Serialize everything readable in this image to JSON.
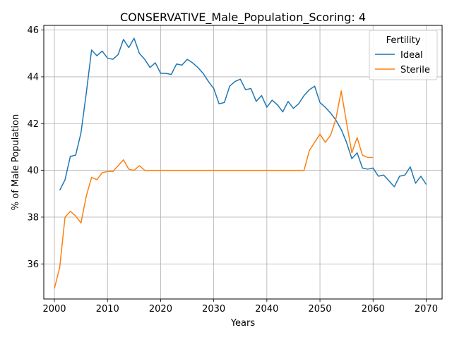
{
  "chart_data": {
    "type": "line",
    "title": "CONSERVATIVE_Male_Population_Scoring: 4",
    "xlabel": "Years",
    "ylabel": "% of Male Population",
    "xlim": [
      1998,
      2073
    ],
    "ylim": [
      34.5,
      46.2
    ],
    "xticks": [
      2000,
      2010,
      2020,
      2030,
      2040,
      2050,
      2060,
      2070
    ],
    "yticks": [
      36,
      38,
      40,
      42,
      44,
      46
    ],
    "grid": true,
    "legend": {
      "title": "Fertility",
      "placement": "top-right"
    },
    "series": [
      {
        "name": "Ideal",
        "color": "#1f77b4",
        "x": [
          2001,
          2002,
          2003,
          2004,
          2005,
          2006,
          2007,
          2008,
          2009,
          2010,
          2011,
          2012,
          2013,
          2014,
          2015,
          2016,
          2017,
          2018,
          2019,
          2020,
          2021,
          2022,
          2023,
          2024,
          2025,
          2026,
          2027,
          2028,
          2029,
          2030,
          2031,
          2032,
          2033,
          2034,
          2035,
          2036,
          2037,
          2038,
          2039,
          2040,
          2041,
          2042,
          2043,
          2044,
          2045,
          2046,
          2047,
          2048,
          2049,
          2050,
          2051,
          2052,
          2053,
          2054,
          2055,
          2056,
          2057,
          2058,
          2059,
          2060,
          2061,
          2062,
          2063,
          2064,
          2065,
          2066,
          2067,
          2068,
          2069,
          2070
        ],
        "values": [
          39.15,
          39.6,
          40.6,
          40.65,
          41.6,
          43.3,
          45.15,
          44.9,
          45.1,
          44.8,
          44.75,
          44.95,
          45.6,
          45.25,
          45.65,
          45.0,
          44.75,
          44.4,
          44.6,
          44.15,
          44.15,
          44.1,
          44.55,
          44.5,
          44.75,
          44.6,
          44.4,
          44.15,
          43.8,
          43.5,
          42.85,
          42.9,
          43.6,
          43.8,
          43.9,
          43.45,
          43.5,
          42.95,
          43.2,
          42.7,
          43.0,
          42.8,
          42.5,
          42.95,
          42.65,
          42.85,
          43.2,
          43.45,
          43.6,
          42.9,
          42.7,
          42.45,
          42.15,
          41.75,
          41.2,
          40.5,
          40.75,
          40.1,
          40.05,
          40.1,
          39.75,
          39.8,
          39.55,
          39.3,
          39.75,
          39.8,
          40.15,
          39.45,
          39.75,
          39.4
        ]
      },
      {
        "name": "Sterile",
        "color": "#ff7f0e",
        "x": [
          2000,
          2001,
          2002,
          2003,
          2004,
          2005,
          2006,
          2007,
          2008,
          2009,
          2010,
          2011,
          2012,
          2013,
          2014,
          2015,
          2016,
          2017,
          2018,
          2019,
          2020,
          2021,
          2022,
          2023,
          2024,
          2025,
          2026,
          2027,
          2028,
          2029,
          2030,
          2031,
          2032,
          2033,
          2034,
          2035,
          2036,
          2037,
          2038,
          2039,
          2040,
          2041,
          2042,
          2043,
          2044,
          2045,
          2046,
          2047,
          2048,
          2049,
          2050,
          2051,
          2052,
          2053,
          2054,
          2055,
          2056,
          2057,
          2058,
          2059,
          2060
        ],
        "values": [
          34.95,
          35.85,
          38.0,
          38.25,
          38.05,
          37.75,
          38.9,
          39.7,
          39.6,
          39.9,
          39.95,
          39.95,
          40.2,
          40.45,
          40.05,
          40.0,
          40.2,
          40.0,
          40.0,
          40.0,
          40.0,
          40.0,
          40.0,
          40.0,
          40.0,
          40.0,
          40.0,
          40.0,
          40.0,
          40.0,
          40.0,
          40.0,
          40.0,
          40.0,
          40.0,
          40.0,
          40.0,
          40.0,
          40.0,
          40.0,
          40.0,
          40.0,
          40.0,
          40.0,
          40.0,
          40.0,
          40.0,
          40.0,
          40.85,
          41.2,
          41.55,
          41.2,
          41.5,
          42.2,
          43.4,
          42.05,
          40.75,
          41.4,
          40.65,
          40.55,
          40.55
        ]
      }
    ]
  }
}
